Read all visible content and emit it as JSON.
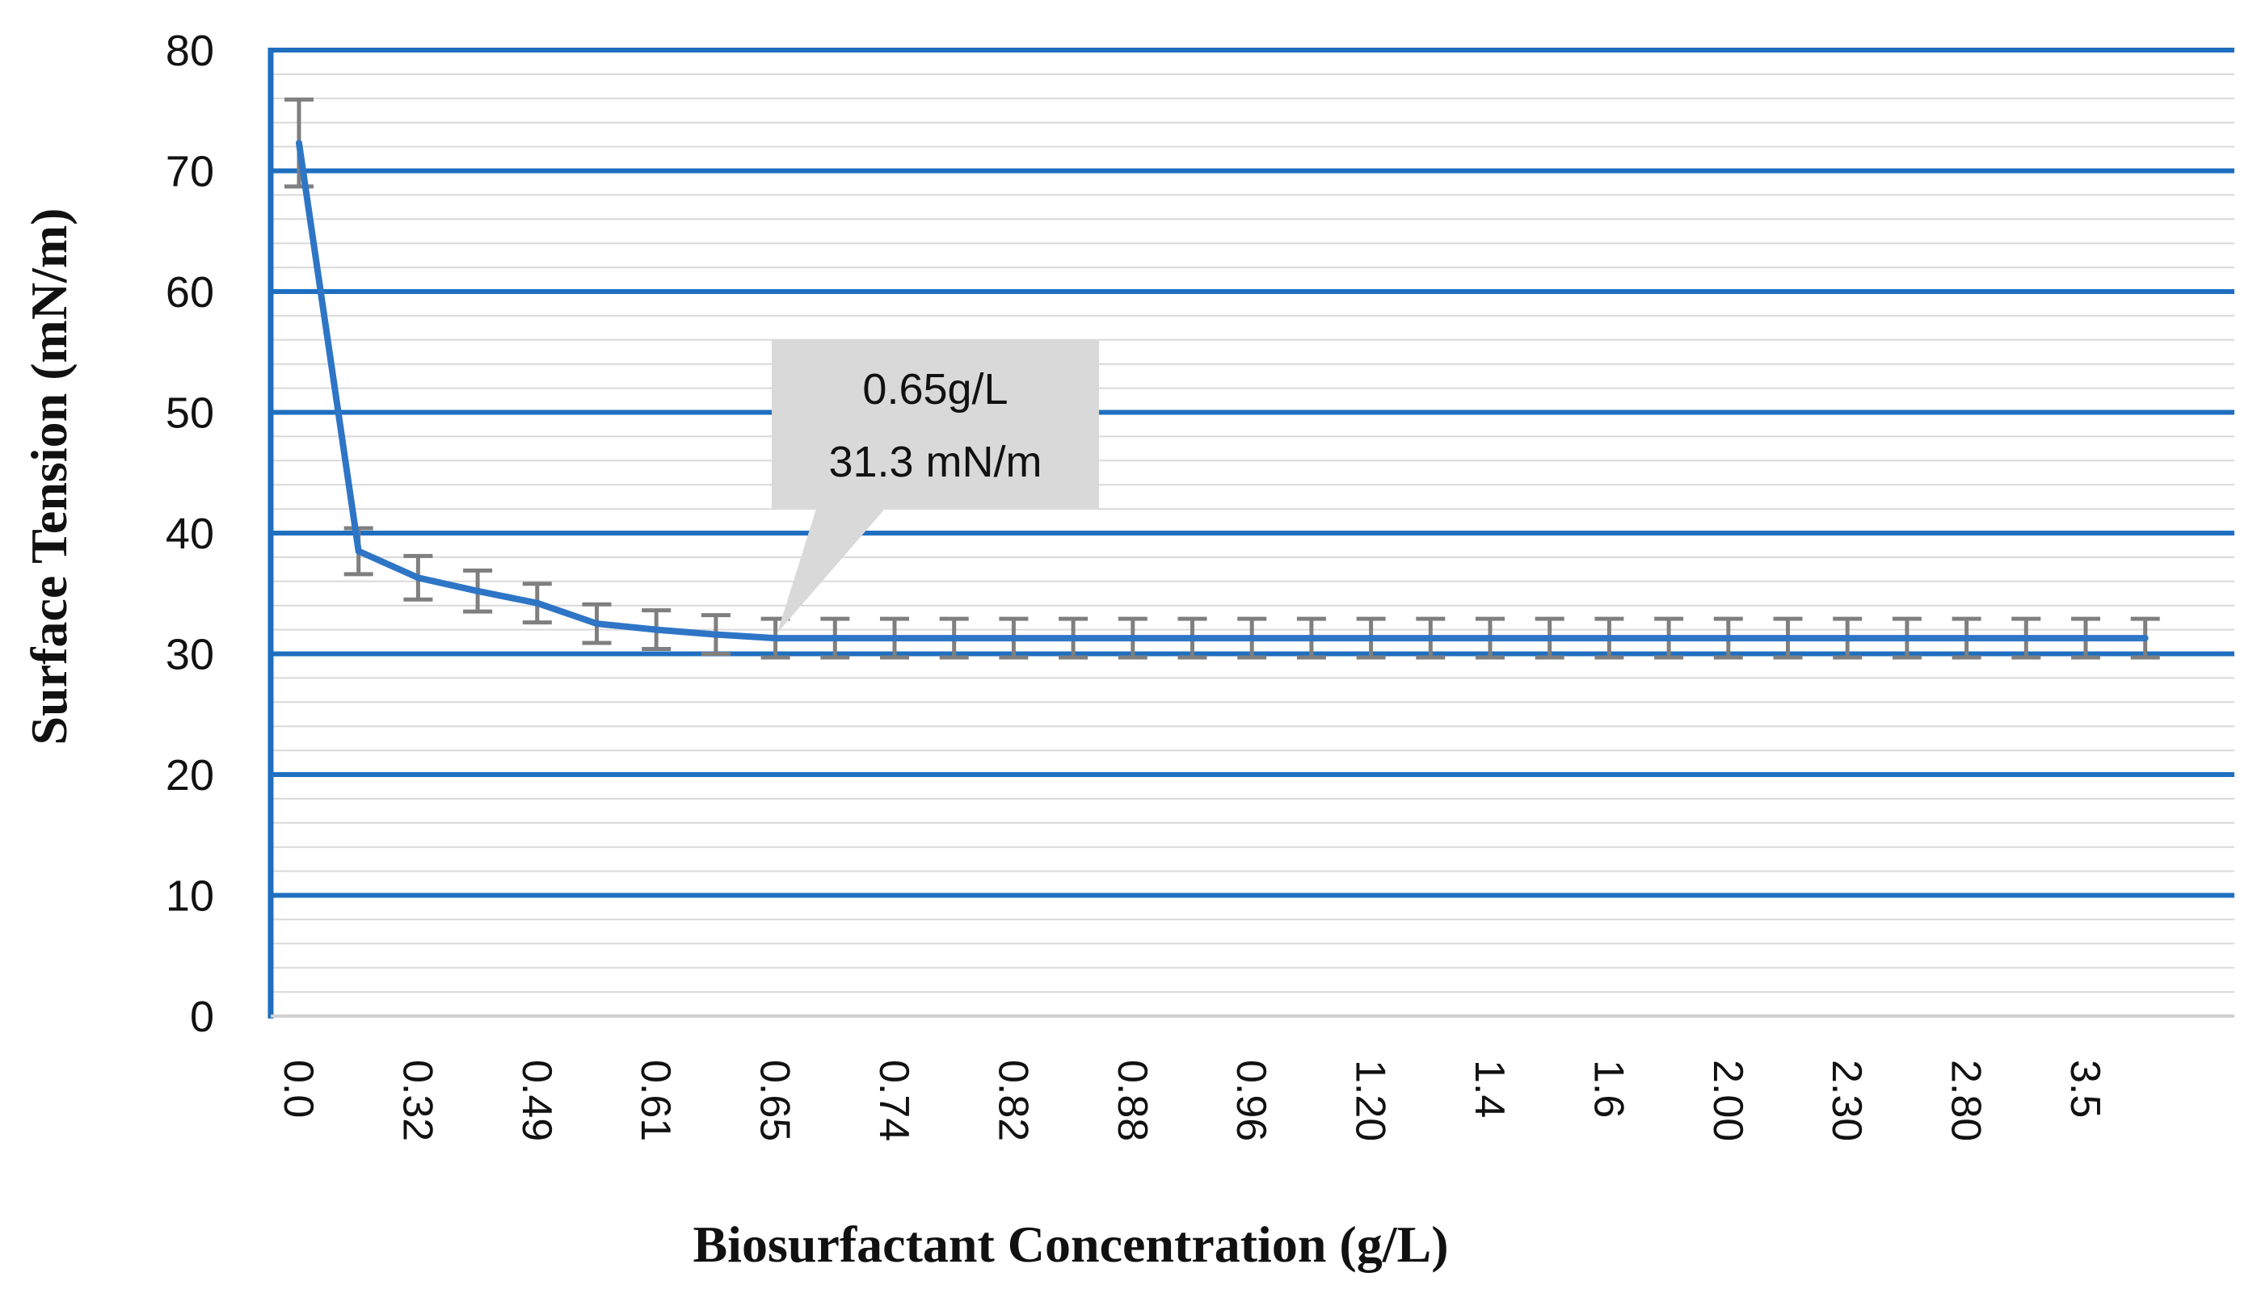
{
  "chart_data": {
    "type": "line",
    "title": "",
    "xlabel": "Biosurfactant Concentration (g/L)",
    "ylabel": "Surface Tension (mN/m)",
    "ylim": [
      0,
      80
    ],
    "ytick_step": 10,
    "y_ticks": [
      "0",
      "10",
      "20",
      "30",
      "40",
      "50",
      "60",
      "70",
      "80"
    ],
    "minor_grid_step": 2,
    "grid": true,
    "colors": {
      "line": "#2E75C6",
      "major_grid": "#1F6FC0",
      "minor_grid": "#D9D9D9",
      "error_bar": "#7F7F7F",
      "callout_bg": "#D9D9D9"
    },
    "x_labels_visible": [
      "0.0",
      "0.32",
      "0.49",
      "0.61",
      "0.65",
      "0.74",
      "0.82",
      "0.88",
      "0.96",
      "1.20",
      "1.4",
      "1.6",
      "2.00",
      "2.30",
      "2.80",
      "3.5"
    ],
    "series": [
      {
        "name": "Surface Tension",
        "values": [
          72.3,
          38.5,
          36.3,
          35.2,
          34.2,
          32.5,
          32.0,
          31.6,
          31.3,
          31.3,
          31.3,
          31.3,
          31.3,
          31.3,
          31.3,
          31.3,
          31.3,
          31.3,
          31.3,
          31.3,
          31.3,
          31.3,
          31.3,
          31.3,
          31.3,
          31.3,
          31.3,
          31.3,
          31.3,
          31.3,
          31.3,
          31.3
        ],
        "error": [
          3.6,
          1.9,
          1.8,
          1.7,
          1.6,
          1.6,
          1.6,
          1.6,
          1.6,
          1.6,
          1.6,
          1.6,
          1.6,
          1.6,
          1.6,
          1.6,
          1.6,
          1.6,
          1.6,
          1.6,
          1.6,
          1.6,
          1.6,
          1.6,
          1.6,
          1.6,
          1.6,
          1.6,
          1.6,
          1.6,
          1.6,
          1.6
        ]
      }
    ],
    "annotations": [
      {
        "point_index": 8,
        "line1": "0.65g/L",
        "line2": "31.3 mN/m"
      }
    ]
  }
}
